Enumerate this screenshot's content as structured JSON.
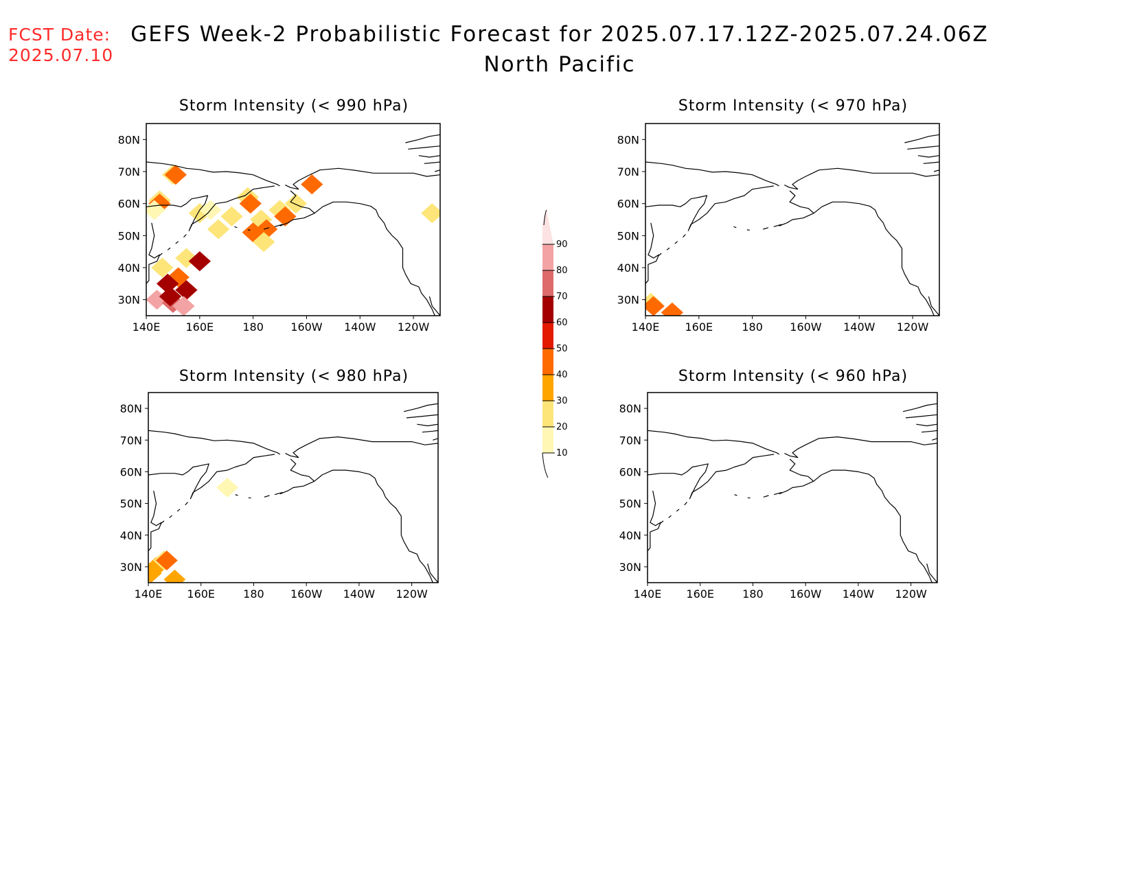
{
  "fcst_date": {
    "label": "FCST Date:",
    "value": "2025.07.10"
  },
  "title": {
    "line1": "GEFS Week-2 Probabilistic Forecast for 2025.07.17.12Z-2025.07.24.06Z",
    "line2": "North Pacific"
  },
  "map_extent": {
    "lon_min": 140,
    "lon_max": 250,
    "lat_min": 25,
    "lat_max": 85
  },
  "lon_ticks": [
    {
      "lon": 140,
      "label": "140E"
    },
    {
      "lon": 160,
      "label": "160E"
    },
    {
      "lon": 180,
      "label": "180"
    },
    {
      "lon": 200,
      "label": "160W"
    },
    {
      "lon": 220,
      "label": "140W"
    },
    {
      "lon": 240,
      "label": "120W"
    }
  ],
  "lat_ticks": [
    {
      "lat": 80,
      "label": "80N"
    },
    {
      "lat": 70,
      "label": "70N"
    },
    {
      "lat": 60,
      "label": "60N"
    },
    {
      "lat": 50,
      "label": "50N"
    },
    {
      "lat": 40,
      "label": "40N"
    },
    {
      "lat": 30,
      "label": "30N"
    }
  ],
  "panels": [
    {
      "id": "p990",
      "title": "Storm Intensity (< 990 hPa)",
      "areas": [
        {
          "lon": 150,
          "lat": 69,
          "value": 20
        },
        {
          "lon": 151,
          "lat": 69,
          "value": 40
        },
        {
          "lon": 145,
          "lat": 61,
          "value": 20
        },
        {
          "lon": 145,
          "lat": 60,
          "value": 40
        },
        {
          "lon": 143,
          "lat": 58,
          "value": 10
        },
        {
          "lon": 160,
          "lat": 57,
          "value": 20
        },
        {
          "lon": 164,
          "lat": 58,
          "value": 10
        },
        {
          "lon": 167,
          "lat": 52,
          "value": 20
        },
        {
          "lon": 172,
          "lat": 56,
          "value": 20
        },
        {
          "lon": 178,
          "lat": 62,
          "value": 20
        },
        {
          "lon": 179,
          "lat": 60,
          "value": 40
        },
        {
          "lon": 183,
          "lat": 55,
          "value": 20
        },
        {
          "lon": 185,
          "lat": 52,
          "value": 40
        },
        {
          "lon": 180,
          "lat": 51,
          "value": 40
        },
        {
          "lon": 190,
          "lat": 58,
          "value": 20
        },
        {
          "lon": 184,
          "lat": 48,
          "value": 20
        },
        {
          "lon": 192,
          "lat": 56,
          "value": 40
        },
        {
          "lon": 196,
          "lat": 60,
          "value": 20
        },
        {
          "lon": 202,
          "lat": 66,
          "value": 40
        },
        {
          "lon": 247,
          "lat": 57,
          "value": 20
        },
        {
          "lon": 155,
          "lat": 43,
          "value": 20
        },
        {
          "lon": 160,
          "lat": 42,
          "value": 60
        },
        {
          "lon": 146,
          "lat": 40,
          "value": 20
        },
        {
          "lon": 152,
          "lat": 37,
          "value": 40
        },
        {
          "lon": 155,
          "lat": 33,
          "value": 60
        },
        {
          "lon": 148,
          "lat": 35,
          "value": 60
        },
        {
          "lon": 144,
          "lat": 30,
          "value": 80
        },
        {
          "lon": 150,
          "lat": 29,
          "value": 70
        },
        {
          "lon": 154,
          "lat": 28,
          "value": 80
        },
        {
          "lon": 149,
          "lat": 31,
          "value": 60
        }
      ]
    },
    {
      "id": "p970",
      "title": "Storm Intensity (< 970 hPa)",
      "areas": [
        {
          "lon": 142,
          "lat": 29,
          "value": 20
        },
        {
          "lon": 143,
          "lat": 28,
          "value": 40
        },
        {
          "lon": 150,
          "lat": 26,
          "value": 40
        }
      ]
    },
    {
      "id": "p980",
      "title": "Storm Intensity (< 980 hPa)",
      "areas": [
        {
          "lon": 143,
          "lat": 30,
          "value": 30
        },
        {
          "lon": 146,
          "lat": 32,
          "value": 20
        },
        {
          "lon": 147,
          "lat": 32,
          "value": 40
        },
        {
          "lon": 141,
          "lat": 28,
          "value": 30
        },
        {
          "lon": 150,
          "lat": 26,
          "value": 30
        },
        {
          "lon": 170,
          "lat": 55,
          "value": 10
        }
      ]
    },
    {
      "id": "p960",
      "title": "Storm Intensity (< 960 hPa)",
      "areas": []
    }
  ],
  "colorbar": {
    "levels": [
      10,
      20,
      30,
      40,
      50,
      60,
      70,
      80,
      90
    ],
    "colors": [
      "#fff7b3",
      "#fde57a",
      "#ffa500",
      "#ff6a00",
      "#e31a00",
      "#a50000",
      "#de6a6a",
      "#f3a3a3",
      "#fde2e2"
    ]
  }
}
